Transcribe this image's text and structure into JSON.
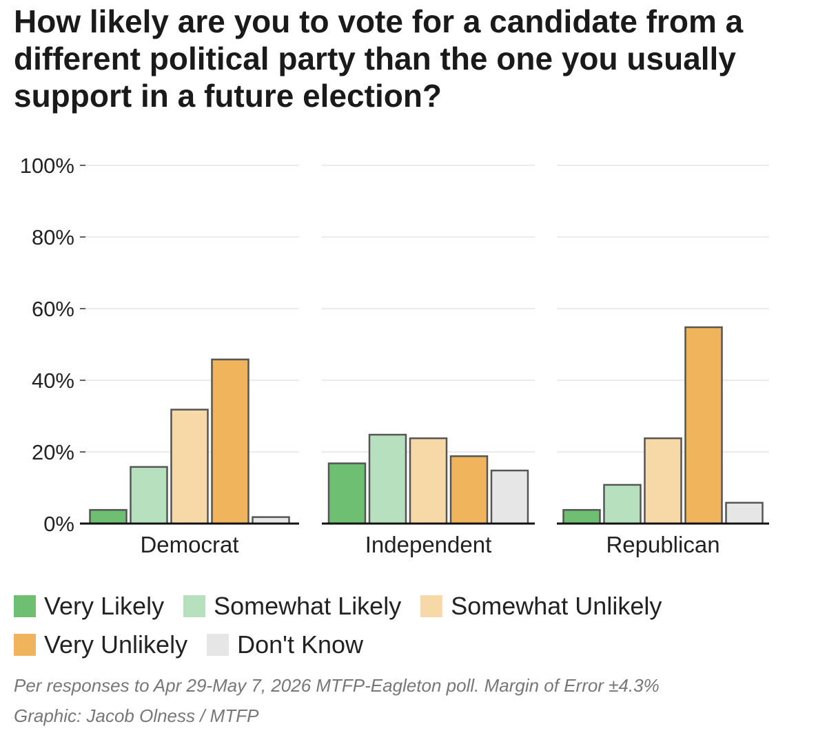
{
  "chart_data": {
    "type": "bar",
    "title": "How likely are you to vote for a candidate from a different political party than the one you usually support in a future election?",
    "categories": [
      "Democrat",
      "Independent",
      "Republican"
    ],
    "ylim": [
      0,
      100
    ],
    "yticks": [
      0,
      20,
      40,
      60,
      80,
      100
    ],
    "ytick_labels": [
      "0%",
      "20%",
      "40%",
      "60%",
      "80%",
      "100%"
    ],
    "grid": true,
    "legend_position": "bottom",
    "series": [
      {
        "name": "Very Likely",
        "color": "#6fbf73",
        "values": [
          4,
          17,
          4
        ]
      },
      {
        "name": "Somewhat Likely",
        "color": "#b7e1be",
        "values": [
          16,
          25,
          11
        ]
      },
      {
        "name": "Somewhat Unlikely",
        "color": "#f6d9a6",
        "values": [
          32,
          24,
          24
        ]
      },
      {
        "name": "Very Unlikely",
        "color": "#efb45c",
        "values": [
          46,
          19,
          55
        ]
      },
      {
        "name": "Don't Know",
        "color": "#e6e6e6",
        "values": [
          2,
          15,
          6
        ]
      }
    ],
    "note": "Per responses to Apr 29-May 7, 2026 MTFP-Eagleton poll. Margin of Error ±4.3%",
    "credit": "Graphic: Jacob Olness / MTFP"
  }
}
